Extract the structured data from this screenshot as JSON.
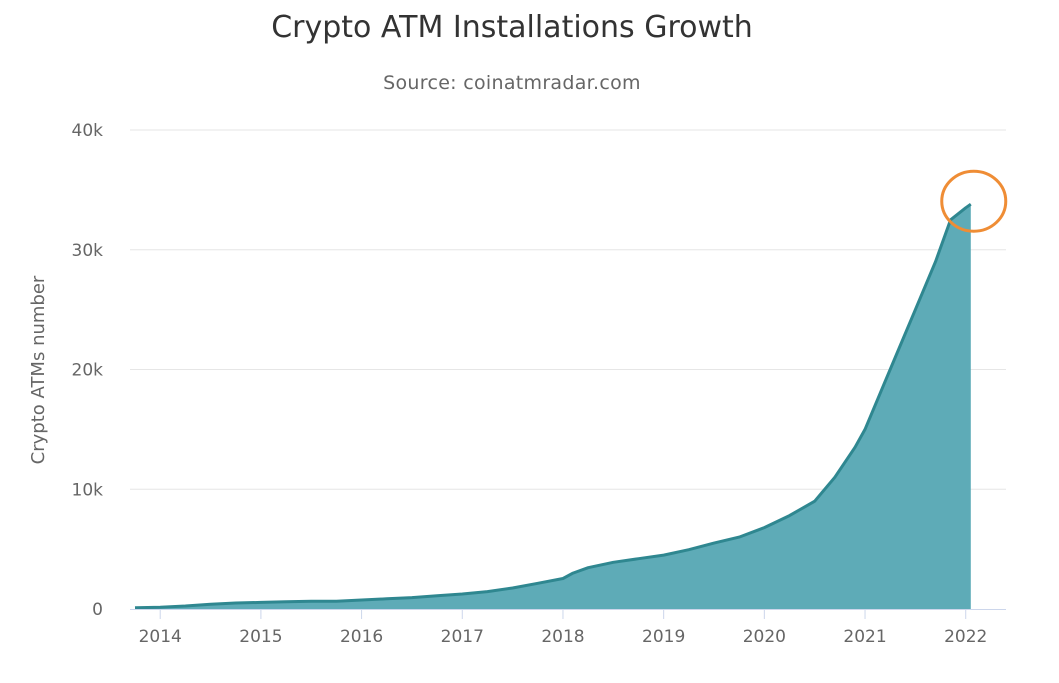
{
  "chart_data": {
    "type": "area",
    "title": "Crypto ATM Installations Growth",
    "subtitle": "Source: coinatmradar.com",
    "xlabel": "",
    "ylabel": "Crypto ATMs number",
    "xlim": [
      2013.7,
      2022.4
    ],
    "ylim": [
      0,
      40000
    ],
    "x_ticks": [
      2014,
      2015,
      2016,
      2017,
      2018,
      2019,
      2020,
      2021,
      2022
    ],
    "y_ticks": [
      {
        "value": 0,
        "label": "0"
      },
      {
        "value": 10000,
        "label": "10k"
      },
      {
        "value": 20000,
        "label": "20k"
      },
      {
        "value": 30000,
        "label": "30k"
      },
      {
        "value": 40000,
        "label": "40k"
      }
    ],
    "grid": true,
    "colors": {
      "fill": "#5eabb7",
      "line": "#2f8790",
      "highlight": "#ef8d35"
    },
    "highlight_last_point": true,
    "x": [
      2013.75,
      2014.0,
      2014.25,
      2014.5,
      2014.75,
      2015.0,
      2015.25,
      2015.5,
      2015.75,
      2016.0,
      2016.25,
      2016.5,
      2016.75,
      2017.0,
      2017.25,
      2017.5,
      2017.75,
      2018.0,
      2018.1,
      2018.25,
      2018.5,
      2018.75,
      2019.0,
      2019.25,
      2019.5,
      2019.75,
      2020.0,
      2020.25,
      2020.5,
      2020.7,
      2020.9,
      2021.0,
      2021.15,
      2021.3,
      2021.5,
      2021.7,
      2021.85,
      2022.0,
      2022.05
    ],
    "y": [
      100,
      150,
      250,
      400,
      500,
      550,
      600,
      650,
      650,
      750,
      850,
      950,
      1100,
      1250,
      1450,
      1750,
      2150,
      2550,
      3000,
      3450,
      3900,
      4200,
      4500,
      4950,
      5500,
      6000,
      6800,
      7800,
      9000,
      11000,
      13500,
      15000,
      18000,
      21000,
      25000,
      29000,
      32500,
      33500,
      33800
    ]
  }
}
